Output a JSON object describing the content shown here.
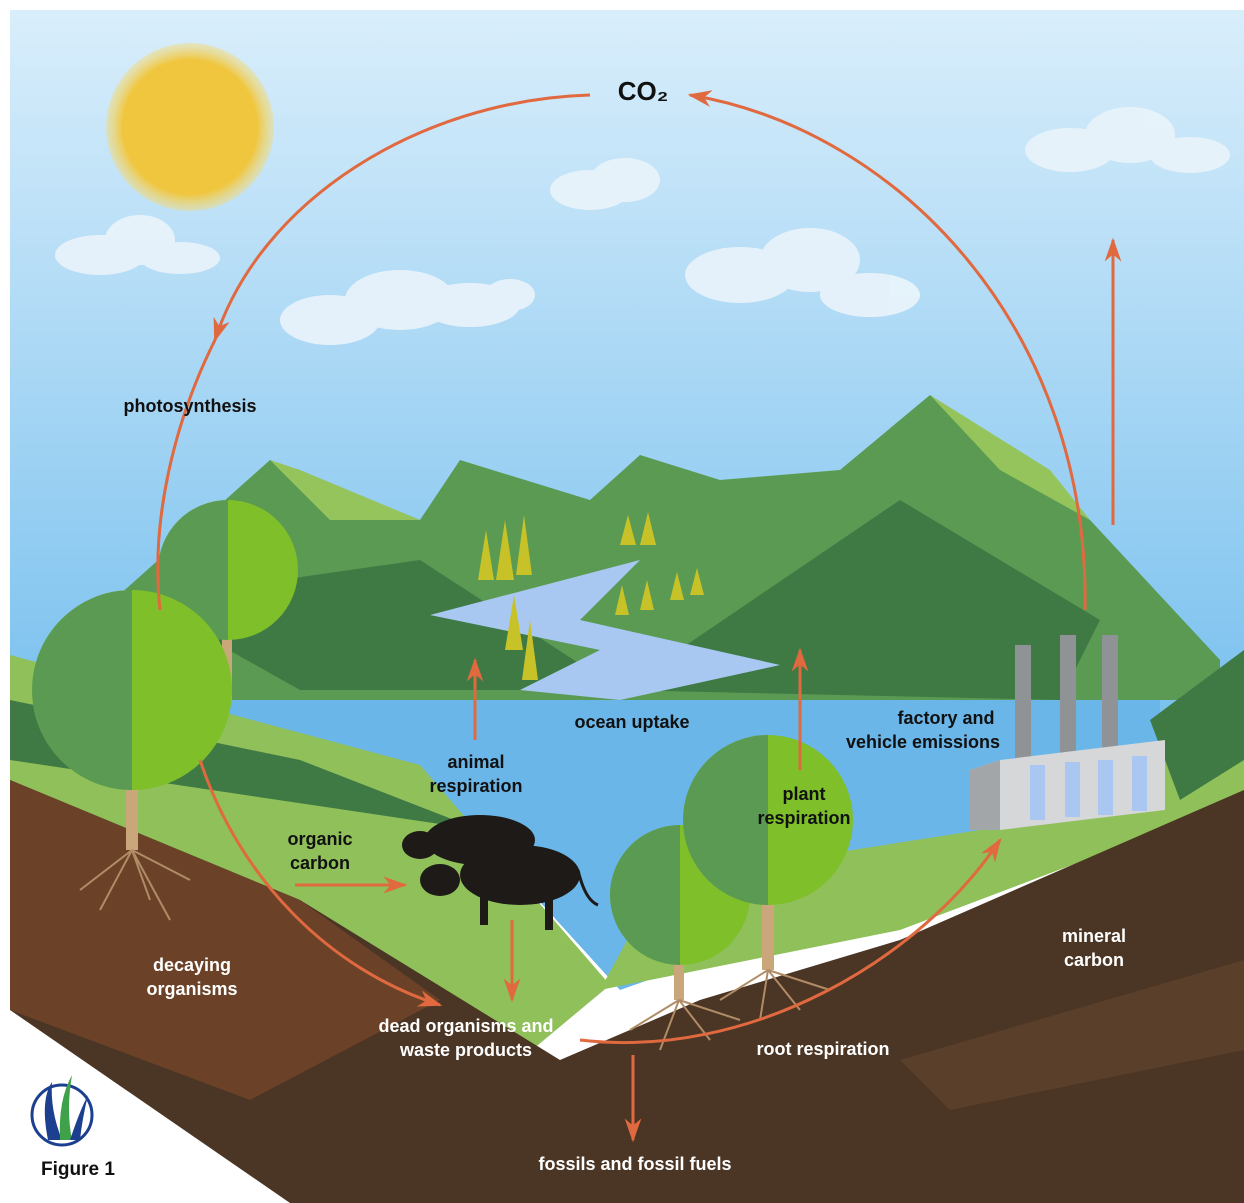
{
  "title": {
    "symbol": "CO₂"
  },
  "labels": [
    {
      "lines": [
        "photosynthesis"
      ]
    },
    {
      "lines": [
        "ocean uptake"
      ]
    },
    {
      "lines": [
        "animal",
        "respiration"
      ]
    },
    {
      "lines": [
        "organic",
        "carbon"
      ]
    },
    {
      "lines": [
        "plant",
        "respiration"
      ]
    },
    {
      "lines": [
        "factory and",
        "vehicle emissions"
      ]
    },
    {
      "lines": [
        "decaying",
        "organisms"
      ]
    },
    {
      "lines": [
        "dead organisms and",
        "waste products"
      ]
    },
    {
      "lines": [
        "root respiration"
      ]
    },
    {
      "lines": [
        "mineral",
        "carbon"
      ]
    },
    {
      "lines": [
        "fossils and fossil fuels"
      ]
    }
  ],
  "caption": "Figure 1"
}
